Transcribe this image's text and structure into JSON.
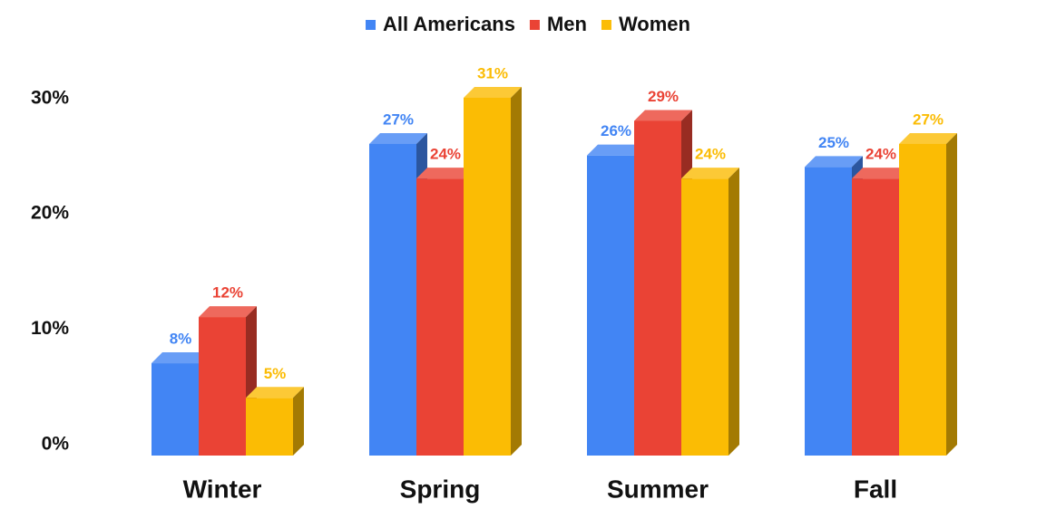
{
  "chart_data": {
    "type": "bar3d",
    "categories": [
      "Winter",
      "Spring",
      "Summer",
      "Fall"
    ],
    "series": [
      {
        "name": "All Americans",
        "color": "#4285f4",
        "values": [
          8,
          27,
          26,
          25
        ],
        "value_labels": [
          "8%",
          "27%",
          "26%",
          "25%"
        ]
      },
      {
        "name": "Men",
        "color": "#ea4335",
        "values": [
          12,
          24,
          29,
          24
        ],
        "value_labels": [
          "12%",
          "24%",
          "29%",
          "24%"
        ]
      },
      {
        "name": "Women",
        "color": "#fbbc04",
        "values": [
          5,
          31,
          24,
          27
        ],
        "value_labels": [
          "5%",
          "31%",
          "24%",
          "27%"
        ]
      }
    ],
    "ylim": [
      0,
      35
    ],
    "yticks": [
      {
        "value": 0,
        "label": "0%"
      },
      {
        "value": 10,
        "label": "10%"
      },
      {
        "value": 20,
        "label": "20%"
      },
      {
        "value": 30,
        "label": "30%"
      }
    ],
    "legend": "top"
  }
}
